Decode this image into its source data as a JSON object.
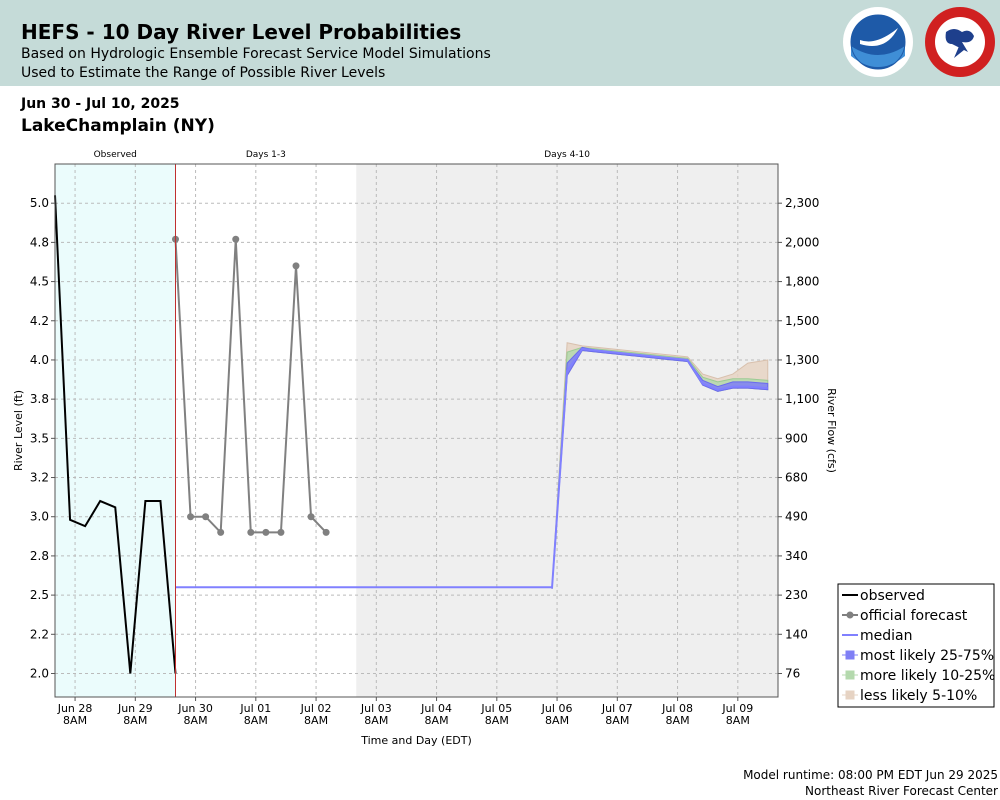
{
  "header": {
    "title": "HEFS - 10 Day River Level Probabilities",
    "subtitle1": "Based on Hydrologic Ensemble Forecast Service Model Simulations",
    "subtitle2": "Used to Estimate the Range of Possible River Levels"
  },
  "date_range": "Jun 30 - Jul 10, 2025",
  "location": "LakeChamplain (NY)",
  "colors": {
    "header_bg": "#c5dbd8",
    "observed_bg": "#ebfcfc",
    "days4_10_bg": "#efefef",
    "observed": "#000000",
    "official": "#808080",
    "median": "#8080ff",
    "band_25_75": "#7f7ff5",
    "band_10_25": "#b4d9ad",
    "band_5_10": "#e6d3c3",
    "now_line": "#c03030"
  },
  "footer": {
    "runtime": "Model runtime: 08:00 PM EDT Jun 29 2025",
    "center": "Northeast River Forecast Center"
  },
  "chart_data": {
    "type": "line",
    "xlabel": "Time and Day (EDT)",
    "ylabel": "River Level (ft)",
    "y2label": "River Flow (cfs)",
    "ylim": [
      1.85,
      5.25
    ],
    "grid": true,
    "legend_position": "bottom-right",
    "region_labels": [
      "Observed",
      "Days 1-3",
      "Days 4-10"
    ],
    "x_ticks": [
      {
        "t": 0.333,
        "day": "Jun 28",
        "time": "8AM"
      },
      {
        "t": 1.333,
        "day": "Jun 29",
        "time": "8AM"
      },
      {
        "t": 2.333,
        "day": "Jun 30",
        "time": "8AM"
      },
      {
        "t": 3.333,
        "day": "Jul 01",
        "time": "8AM"
      },
      {
        "t": 4.333,
        "day": "Jul 02",
        "time": "8AM"
      },
      {
        "t": 5.333,
        "day": "Jul 03",
        "time": "8AM"
      },
      {
        "t": 6.333,
        "day": "Jul 04",
        "time": "8AM"
      },
      {
        "t": 7.333,
        "day": "Jul 05",
        "time": "8AM"
      },
      {
        "t": 8.333,
        "day": "Jul 06",
        "time": "8AM"
      },
      {
        "t": 9.333,
        "day": "Jul 07",
        "time": "8AM"
      },
      {
        "t": 10.333,
        "day": "Jul 08",
        "time": "8AM"
      },
      {
        "t": 11.333,
        "day": "Jul 09",
        "time": "8AM"
      }
    ],
    "y_ticks": [
      {
        "value": 2.0,
        "label": "2.0",
        "flow": "76"
      },
      {
        "value": 2.25,
        "label": "2.2",
        "flow": "140"
      },
      {
        "value": 2.5,
        "label": "2.5",
        "flow": "230"
      },
      {
        "value": 2.75,
        "label": "2.8",
        "flow": "340"
      },
      {
        "value": 3.0,
        "label": "3.0",
        "flow": "490"
      },
      {
        "value": 3.25,
        "label": "3.2",
        "flow": "680"
      },
      {
        "value": 3.5,
        "label": "3.5",
        "flow": "900"
      },
      {
        "value": 3.75,
        "label": "3.8",
        "flow": "1,100"
      },
      {
        "value": 4.0,
        "label": "4.0",
        "flow": "1,300"
      },
      {
        "value": 4.25,
        "label": "4.2",
        "flow": "1,500"
      },
      {
        "value": 4.5,
        "label": "4.5",
        "flow": "1,800"
      },
      {
        "value": 4.75,
        "label": "4.8",
        "flow": "2,000"
      },
      {
        "value": 5.0,
        "label": "5.0",
        "flow": "2,300"
      }
    ],
    "observed": [
      [
        0.0,
        5.05
      ],
      [
        0.25,
        2.98
      ],
      [
        0.5,
        2.94
      ],
      [
        0.75,
        3.1
      ],
      [
        1.0,
        3.06
      ],
      [
        1.25,
        2.0
      ],
      [
        1.5,
        3.1
      ],
      [
        1.75,
        3.1
      ],
      [
        2.0,
        2.0
      ]
    ],
    "official_forecast": [
      [
        2.0,
        4.77
      ],
      [
        2.25,
        3.0
      ],
      [
        2.5,
        3.0
      ],
      [
        2.75,
        2.9
      ],
      [
        3.0,
        4.77
      ],
      [
        3.25,
        2.9
      ],
      [
        3.5,
        2.9
      ],
      [
        3.75,
        2.9
      ],
      [
        4.0,
        4.6
      ],
      [
        4.25,
        3.0
      ],
      [
        4.5,
        2.9
      ]
    ],
    "median": [
      [
        2.0,
        2.55
      ],
      [
        8.25,
        2.55
      ],
      [
        8.5,
        3.93
      ],
      [
        8.75,
        4.07
      ],
      [
        9.0,
        4.06
      ],
      [
        9.5,
        4.04
      ],
      [
        10.0,
        4.02
      ],
      [
        10.25,
        4.01
      ],
      [
        10.5,
        4.0
      ],
      [
        10.75,
        3.85
      ],
      [
        11.0,
        3.81
      ],
      [
        11.25,
        3.83
      ],
      [
        11.5,
        3.83
      ],
      [
        11.83,
        3.82
      ]
    ],
    "band_5_10": {
      "t": [
        8.25,
        8.5,
        8.75,
        9.0,
        9.5,
        10.0,
        10.25,
        10.5,
        10.75,
        11.0,
        11.25,
        11.5,
        11.83
      ],
      "upper": [
        2.56,
        4.11,
        4.09,
        4.08,
        4.06,
        4.04,
        4.03,
        4.02,
        3.91,
        3.88,
        3.91,
        3.98,
        4.0
      ],
      "lower": [
        2.54,
        3.9,
        4.06,
        4.05,
        4.03,
        4.01,
        4.0,
        3.99,
        3.84,
        3.8,
        3.82,
        3.82,
        3.81
      ]
    },
    "band_10_25": {
      "t": [
        8.25,
        8.5,
        8.75,
        9.0,
        9.5,
        10.0,
        10.25,
        10.5,
        10.75,
        11.0,
        11.25,
        11.5,
        11.83
      ],
      "upper": [
        2.56,
        4.05,
        4.08,
        4.07,
        4.05,
        4.03,
        4.02,
        4.01,
        3.89,
        3.86,
        3.88,
        3.88,
        3.87
      ],
      "lower": [
        2.54,
        3.91,
        4.06,
        4.05,
        4.03,
        4.01,
        4.0,
        3.99,
        3.84,
        3.8,
        3.82,
        3.82,
        3.81
      ]
    },
    "band_25_75": {
      "t": [
        8.25,
        8.5,
        8.75,
        9.0,
        9.5,
        10.0,
        10.25,
        10.5,
        10.75,
        11.0,
        11.25,
        11.5,
        11.83
      ],
      "upper": [
        2.56,
        3.98,
        4.08,
        4.06,
        4.04,
        4.02,
        4.01,
        4.0,
        3.87,
        3.83,
        3.86,
        3.86,
        3.85
      ],
      "lower": [
        2.54,
        3.9,
        4.06,
        4.05,
        4.03,
        4.01,
        4.0,
        3.99,
        3.84,
        3.8,
        3.82,
        3.82,
        3.81
      ]
    },
    "legend": [
      {
        "key": "observed",
        "label": "observed"
      },
      {
        "key": "official",
        "label": "official forecast"
      },
      {
        "key": "median",
        "label": "median"
      },
      {
        "key": "band_25_75",
        "label": "most likely 25-75%"
      },
      {
        "key": "band_10_25",
        "label": "more likely 10-25%"
      },
      {
        "key": "band_5_10",
        "label": "less likely 5-10%"
      }
    ]
  }
}
